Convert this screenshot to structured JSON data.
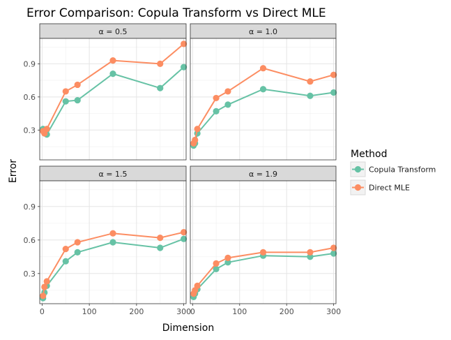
{
  "chart_data": {
    "type": "line",
    "title": "Error Comparison: Copula Transform vs Direct MLE",
    "xlabel": "Dimension",
    "ylabel": "Error",
    "xlim": [
      -5,
      305
    ],
    "ylim": [
      0.03,
      1.13
    ],
    "xticks": [
      0,
      100,
      200,
      300
    ],
    "yticks": [
      0.3,
      0.6,
      0.9
    ],
    "x": [
      2,
      5,
      10,
      50,
      75,
      150,
      250,
      300
    ],
    "legend": {
      "title": "Method",
      "position": "right",
      "entries": [
        "Copula Transform",
        "Direct MLE"
      ]
    },
    "colors": {
      "Copula Transform": "#66c2a5",
      "Direct MLE": "#fc8d62"
    },
    "panels": [
      {
        "label": "α = 0.5",
        "series": [
          {
            "name": "Copula Transform",
            "values": [
              0.31,
              0.29,
              0.26,
              0.56,
              0.57,
              0.81,
              0.68,
              0.87
            ]
          },
          {
            "name": "Direct MLE",
            "values": [
              0.29,
              0.27,
              0.31,
              0.65,
              0.71,
              0.93,
              0.9,
              1.08
            ]
          }
        ]
      },
      {
        "label": "α = 1.0",
        "series": [
          {
            "name": "Copula Transform",
            "values": [
              0.16,
              0.18,
              0.27,
              0.47,
              0.53,
              0.67,
              0.61,
              0.64
            ]
          },
          {
            "name": "Direct MLE",
            "values": [
              0.18,
              0.21,
              0.31,
              0.59,
              0.65,
              0.86,
              0.74,
              0.8
            ]
          }
        ]
      },
      {
        "label": "α = 1.5",
        "series": [
          {
            "name": "Copula Transform",
            "values": [
              0.08,
              0.13,
              0.19,
              0.41,
              0.49,
              0.58,
              0.53,
              0.61
            ]
          },
          {
            "name": "Direct MLE",
            "values": [
              0.1,
              0.18,
              0.23,
              0.52,
              0.58,
              0.66,
              0.62,
              0.67
            ]
          }
        ]
      },
      {
        "label": "α = 1.9",
        "series": [
          {
            "name": "Copula Transform",
            "values": [
              0.09,
              0.12,
              0.16,
              0.34,
              0.4,
              0.46,
              0.45,
              0.48
            ]
          },
          {
            "name": "Direct MLE",
            "values": [
              0.12,
              0.15,
              0.19,
              0.39,
              0.44,
              0.49,
              0.49,
              0.53
            ]
          }
        ]
      }
    ]
  }
}
